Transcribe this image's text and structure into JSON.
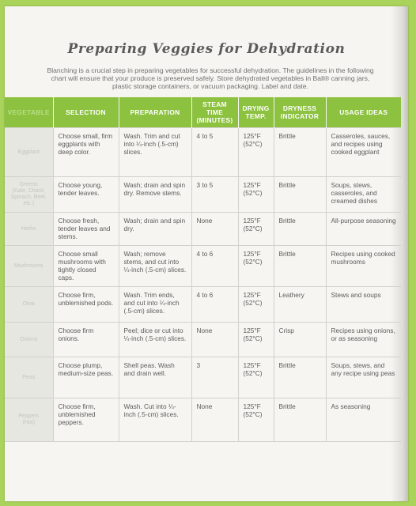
{
  "title": "Preparing Veggies for Dehydration",
  "intro": "Blanching is a crucial step in preparing vegetables for successful dehydration. The guidelines in the following chart will ensure that your produce is preserved safely. Store dehydrated vegetables in Ball® canning jars, plastic storage containers, or vacuum packaging. Label and date.",
  "headers": [
    "Vegetable",
    "Selection",
    "Preparation",
    "Steam Time (minutes)",
    "Drying Temp.",
    "Dryness Indicator",
    "Usage Ideas"
  ],
  "rows": [
    {
      "vegetable": "Eggplant",
      "sub": "",
      "selection": "Choose small, firm eggplants with deep color.",
      "preparation": "Wash. Trim and cut into ¼-inch (.5-cm) slices.",
      "steam": "4 to 5",
      "temp": "125°F (52°C)",
      "dryness": "Brittle",
      "usage": "Casseroles, sauces, and recipes using cooked eggplant"
    },
    {
      "vegetable": "Greens",
      "sub": "(Kale, Chard, Spinach, Beet, etc.)",
      "selection": "Choose young, tender leaves.",
      "preparation": "Wash; drain and spin dry. Remove stems.",
      "steam": "3 to 5",
      "temp": "125°F (52°C)",
      "dryness": "Brittle",
      "usage": "Soups, stews, casseroles, and creamed dishes"
    },
    {
      "vegetable": "Herbs",
      "sub": "",
      "selection": "Choose fresh, tender leaves and stems.",
      "preparation": "Wash; drain and spin dry.",
      "steam": "None",
      "temp": "125°F (52°C)",
      "dryness": "Brittle",
      "usage": "All-purpose seasoning"
    },
    {
      "vegetable": "Mushrooms",
      "sub": "",
      "selection": "Choose small mushrooms with tightly closed caps.",
      "preparation": "Wash; remove stems, and cut into ¼-inch (.5-cm) slices.",
      "steam": "4 to 6",
      "temp": "125°F (52°C)",
      "dryness": "Brittle",
      "usage": "Recipes using cooked mushrooms"
    },
    {
      "vegetable": "Okra",
      "sub": "",
      "selection": "Choose firm, unblemished pods.",
      "preparation": "Wash. Trim ends, and cut into ¼-inch (.5-cm) slices.",
      "steam": "4 to 6",
      "temp": "125°F (52°C)",
      "dryness": "Leathery",
      "usage": "Stews and soups"
    },
    {
      "vegetable": "Onions",
      "sub": "",
      "selection": "Choose firm onions.",
      "preparation": "Peel; dice or cut into ¼-inch (.5-cm) slices.",
      "steam": "None",
      "temp": "125°F (52°C)",
      "dryness": "Crisp",
      "usage": "Recipes using onions, or as seasoning"
    },
    {
      "vegetable": "Peas",
      "sub": "",
      "selection": "Choose plump, medium-size peas.",
      "preparation": "Shell peas. Wash and drain well.",
      "steam": "3",
      "temp": "125°F (52°C)",
      "dryness": "Brittle",
      "usage": "Soups, stews, and any recipe using peas"
    },
    {
      "vegetable": "Peppers",
      "sub": "(Hot)",
      "selection": "Choose firm, unblemished peppers.",
      "preparation": "Wash. Cut into ¼-inch (.5-cm) slices.",
      "steam": "None",
      "temp": "125°F (52°C)",
      "dryness": "Brittle",
      "usage": "As seasoning"
    }
  ]
}
